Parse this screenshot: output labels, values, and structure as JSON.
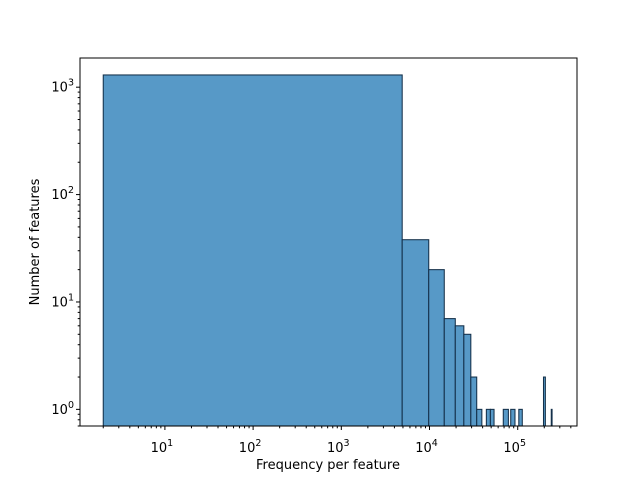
{
  "chart_data": {
    "type": "bar",
    "subtype": "histogram-log-log",
    "title": "",
    "xlabel": "Frequency per feature",
    "ylabel": "Number of features",
    "x_scale": "log",
    "y_scale": "log",
    "xlim": [
      1.09,
      470000
    ],
    "ylim": [
      0.7,
      1870
    ],
    "grid": false,
    "legend": null,
    "colors": {
      "bar_face": "#5799c7",
      "bar_edge": "#14304a",
      "axes_frame": "#000000",
      "background": "#ffffff"
    },
    "x_ticks": [
      {
        "value": 10,
        "base": "10",
        "exp": "1"
      },
      {
        "value": 100,
        "base": "10",
        "exp": "2"
      },
      {
        "value": 1000,
        "base": "10",
        "exp": "3"
      },
      {
        "value": 10000,
        "base": "10",
        "exp": "4"
      },
      {
        "value": 100000,
        "base": "10",
        "exp": "5"
      }
    ],
    "y_ticks": [
      {
        "value": 1,
        "base": "10",
        "exp": "0"
      },
      {
        "value": 10,
        "base": "10",
        "exp": "1"
      },
      {
        "value": 100,
        "base": "10",
        "exp": "2"
      },
      {
        "value": 1000,
        "base": "10",
        "exp": "3"
      }
    ],
    "bins": [
      {
        "x0": 2,
        "x1": 4900,
        "count": 1300
      },
      {
        "x0": 4900,
        "x1": 9800,
        "count": 38
      },
      {
        "x0": 9800,
        "x1": 14700,
        "count": 20
      },
      {
        "x0": 14700,
        "x1": 19600,
        "count": 7
      },
      {
        "x0": 19600,
        "x1": 24500,
        "count": 6
      },
      {
        "x0": 24500,
        "x1": 29400,
        "count": 5
      },
      {
        "x0": 29400,
        "x1": 34300,
        "count": 2
      },
      {
        "x0": 34300,
        "x1": 39200,
        "count": 1
      },
      {
        "x0": 44100,
        "x1": 49000,
        "count": 1
      },
      {
        "x0": 49000,
        "x1": 53900,
        "count": 1
      },
      {
        "x0": 68600,
        "x1": 78400,
        "count": 1
      },
      {
        "x0": 83300,
        "x1": 93100,
        "count": 1
      },
      {
        "x0": 102900,
        "x1": 112700,
        "count": 1
      },
      {
        "x0": 196000,
        "x1": 205800,
        "count": 2
      },
      {
        "x0": 240100,
        "x1": 245000,
        "count": 1
      }
    ]
  }
}
